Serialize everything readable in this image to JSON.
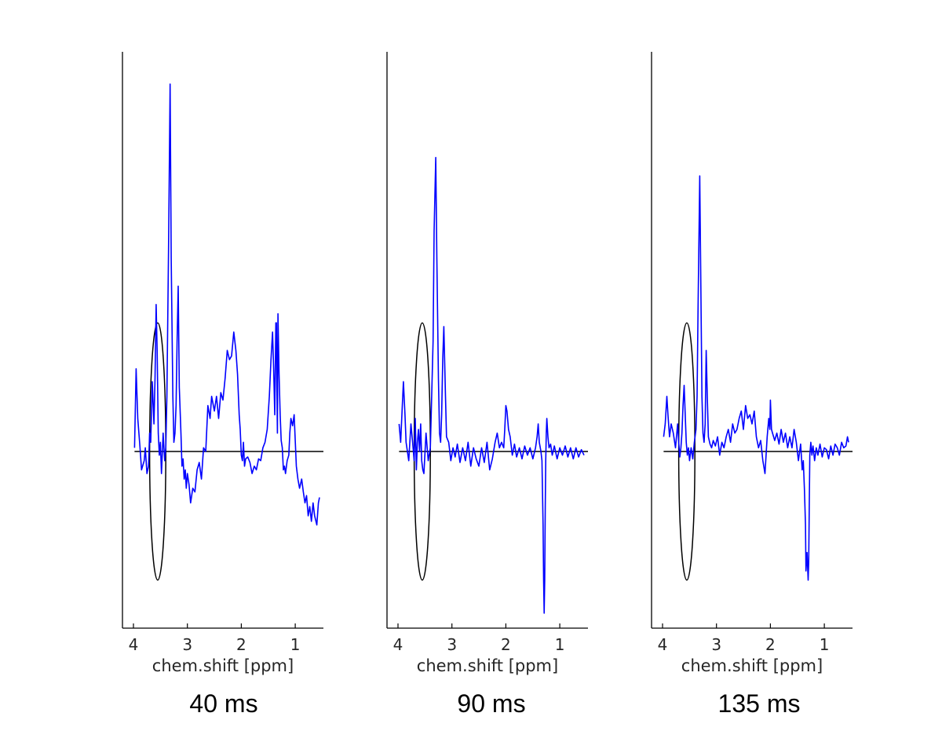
{
  "colors": {
    "spectrum": "#0000ff",
    "axis": "#000000",
    "baseline": "#000000",
    "ellipse": "#000000"
  },
  "chart_data": [
    {
      "type": "line",
      "caption": "40 ms",
      "xlabel": "chem.shift [ppm]",
      "xlim": [
        4.2,
        0.5
      ],
      "ylim": [
        -1.0,
        2.1
      ],
      "x_ticks": [
        {
          "value": 4,
          "label": "4"
        },
        {
          "value": 3,
          "label": "3"
        },
        {
          "value": 2,
          "label": "2"
        },
        {
          "value": 1,
          "label": "1"
        }
      ],
      "grid": false,
      "baseline": 0,
      "highlight_ellipse": {
        "center_ppm": 3.55,
        "center_y": 0,
        "half_width_ppm": 0.15,
        "half_height": 0.7
      },
      "x": [
        3.98,
        3.95,
        3.92,
        3.88,
        3.85,
        3.8,
        3.78,
        3.75,
        3.72,
        3.7,
        3.68,
        3.65,
        3.62,
        3.6,
        3.58,
        3.56,
        3.54,
        3.52,
        3.5,
        3.48,
        3.45,
        3.42,
        3.4,
        3.38,
        3.35,
        3.32,
        3.3,
        3.27,
        3.25,
        3.23,
        3.21,
        3.19,
        3.17,
        3.15,
        3.12,
        3.1,
        3.08,
        3.06,
        3.04,
        3.02,
        3.0,
        2.97,
        2.94,
        2.9,
        2.86,
        2.82,
        2.78,
        2.74,
        2.7,
        2.66,
        2.62,
        2.58,
        2.55,
        2.5,
        2.46,
        2.42,
        2.38,
        2.34,
        2.3,
        2.26,
        2.22,
        2.18,
        2.14,
        2.1,
        2.07,
        2.04,
        2.02,
        2.0,
        1.98,
        1.96,
        1.94,
        1.92,
        1.88,
        1.84,
        1.8,
        1.76,
        1.72,
        1.68,
        1.64,
        1.6,
        1.56,
        1.52,
        1.48,
        1.45,
        1.42,
        1.4,
        1.38,
        1.36,
        1.35,
        1.34,
        1.33,
        1.32,
        1.3,
        1.28,
        1.26,
        1.24,
        1.22,
        1.2,
        1.18,
        1.15,
        1.12,
        1.1,
        1.08,
        1.05,
        1.02,
        1.0,
        0.98,
        0.95,
        0.92,
        0.88,
        0.85,
        0.82,
        0.79,
        0.76,
        0.73,
        0.7,
        0.67,
        0.64,
        0.6,
        0.57,
        0.55
      ],
      "y": [
        0.02,
        0.45,
        0.18,
        0.03,
        -0.1,
        -0.05,
        0.02,
        -0.12,
        -0.08,
        0.1,
        0.05,
        0.38,
        0.15,
        0.4,
        0.8,
        0.55,
        0.1,
        -0.02,
        0.05,
        -0.12,
        0.1,
        -0.05,
        0.02,
        0.3,
        1.1,
        2.0,
        1.05,
        0.3,
        0.05,
        0.1,
        0.25,
        0.6,
        0.9,
        0.35,
        0.1,
        -0.08,
        -0.04,
        -0.15,
        -0.1,
        -0.2,
        -0.12,
        -0.18,
        -0.28,
        -0.2,
        -0.22,
        -0.1,
        -0.06,
        -0.15,
        0.02,
        0.0,
        0.25,
        0.18,
        0.3,
        0.22,
        0.3,
        0.18,
        0.32,
        0.28,
        0.4,
        0.55,
        0.5,
        0.52,
        0.65,
        0.55,
        0.42,
        0.2,
        0.12,
        -0.02,
        -0.05,
        0.05,
        -0.08,
        -0.04,
        -0.03,
        -0.06,
        -0.12,
        -0.08,
        -0.1,
        -0.04,
        -0.05,
        0.02,
        0.05,
        0.12,
        0.3,
        0.5,
        0.65,
        0.45,
        0.2,
        0.7,
        0.7,
        0.35,
        0.1,
        0.75,
        0.42,
        0.2,
        0.06,
        0.02,
        -0.1,
        -0.08,
        -0.12,
        -0.05,
        -0.02,
        0.1,
        0.18,
        0.14,
        0.2,
        0.06,
        -0.08,
        -0.15,
        -0.2,
        -0.15,
        -0.22,
        -0.28,
        -0.24,
        -0.35,
        -0.3,
        -0.38,
        -0.28,
        -0.35,
        -0.4,
        -0.28,
        -0.25
      ]
    },
    {
      "type": "line",
      "caption": "90 ms",
      "xlabel": "chem.shift [ppm]",
      "xlim": [
        4.2,
        0.5
      ],
      "ylim": [
        -1.0,
        2.1
      ],
      "x_ticks": [
        {
          "value": 4,
          "label": "4"
        },
        {
          "value": 3,
          "label": "3"
        },
        {
          "value": 2,
          "label": "2"
        },
        {
          "value": 1,
          "label": "1"
        }
      ],
      "grid": false,
      "baseline": 0,
      "highlight_ellipse": {
        "center_ppm": 3.55,
        "center_y": 0,
        "half_width_ppm": 0.15,
        "half_height": 0.7
      },
      "x": [
        3.98,
        3.95,
        3.92,
        3.9,
        3.87,
        3.85,
        3.8,
        3.76,
        3.72,
        3.7,
        3.68,
        3.66,
        3.64,
        3.62,
        3.6,
        3.58,
        3.56,
        3.54,
        3.52,
        3.48,
        3.44,
        3.4,
        3.38,
        3.35,
        3.33,
        3.3,
        3.28,
        3.25,
        3.23,
        3.21,
        3.19,
        3.17,
        3.15,
        3.12,
        3.1,
        3.06,
        3.02,
        2.98,
        2.94,
        2.9,
        2.85,
        2.8,
        2.75,
        2.7,
        2.65,
        2.6,
        2.55,
        2.5,
        2.45,
        2.4,
        2.35,
        2.3,
        2.25,
        2.2,
        2.16,
        2.12,
        2.08,
        2.04,
        2.02,
        2.0,
        1.98,
        1.95,
        1.92,
        1.88,
        1.84,
        1.8,
        1.75,
        1.7,
        1.65,
        1.6,
        1.55,
        1.5,
        1.45,
        1.42,
        1.4,
        1.38,
        1.35,
        1.33,
        1.31,
        1.3,
        1.29,
        1.28,
        1.27,
        1.26,
        1.25,
        1.24,
        1.22,
        1.2,
        1.17,
        1.14,
        1.1,
        1.05,
        1.0,
        0.95,
        0.9,
        0.85,
        0.8,
        0.75,
        0.7,
        0.65,
        0.6,
        0.55
      ],
      "y": [
        0.15,
        0.05,
        0.25,
        0.38,
        0.2,
        0.05,
        -0.05,
        0.15,
        0.02,
        -0.05,
        0.18,
        -0.1,
        0.05,
        0.12,
        0.0,
        0.15,
        -0.05,
        -0.1,
        -0.12,
        0.1,
        -0.05,
        0.02,
        0.25,
        0.6,
        1.2,
        1.6,
        1.05,
        0.4,
        0.1,
        0.05,
        0.2,
        0.5,
        0.68,
        0.3,
        0.08,
        0.05,
        -0.05,
        0.02,
        -0.03,
        0.04,
        -0.06,
        0.02,
        -0.05,
        0.05,
        -0.08,
        0.02,
        -0.04,
        -0.08,
        0.02,
        -0.06,
        0.05,
        -0.1,
        -0.04,
        0.05,
        0.1,
        0.02,
        0.05,
        0.02,
        0.12,
        0.25,
        0.22,
        0.12,
        0.08,
        -0.02,
        0.04,
        -0.03,
        0.02,
        -0.04,
        0.03,
        -0.02,
        0.02,
        -0.04,
        0.02,
        0.08,
        0.15,
        0.05,
        0.0,
        -0.05,
        -0.4,
        -0.7,
        -0.88,
        -0.7,
        -0.3,
        -0.05,
        0.1,
        0.18,
        0.08,
        0.02,
        0.04,
        -0.02,
        0.03,
        -0.04,
        0.02,
        -0.02,
        0.03,
        -0.03,
        0.02,
        -0.04,
        0.02,
        -0.03,
        0.01,
        -0.02
      ]
    },
    {
      "type": "line",
      "caption": "135 ms",
      "xlabel": "chem.shift [ppm]",
      "xlim": [
        4.2,
        0.5
      ],
      "ylim": [
        -1.0,
        2.1
      ],
      "x_ticks": [
        {
          "value": 4,
          "label": "4"
        },
        {
          "value": 3,
          "label": "3"
        },
        {
          "value": 2,
          "label": "2"
        },
        {
          "value": 1,
          "label": "1"
        }
      ],
      "grid": false,
      "baseline": 0,
      "highlight_ellipse": {
        "center_ppm": 3.55,
        "center_y": 0,
        "half_width_ppm": 0.15,
        "half_height": 0.7
      },
      "x": [
        3.98,
        3.95,
        3.92,
        3.9,
        3.87,
        3.84,
        3.8,
        3.76,
        3.72,
        3.7,
        3.68,
        3.66,
        3.64,
        3.62,
        3.6,
        3.58,
        3.56,
        3.54,
        3.52,
        3.5,
        3.47,
        3.44,
        3.41,
        3.38,
        3.36,
        3.34,
        3.31,
        3.29,
        3.27,
        3.25,
        3.23,
        3.21,
        3.19,
        3.17,
        3.15,
        3.12,
        3.09,
        3.06,
        3.02,
        2.98,
        2.94,
        2.9,
        2.86,
        2.82,
        2.78,
        2.74,
        2.7,
        2.66,
        2.62,
        2.58,
        2.54,
        2.5,
        2.46,
        2.42,
        2.38,
        2.34,
        2.3,
        2.26,
        2.22,
        2.18,
        2.14,
        2.1,
        2.06,
        2.03,
        2.01,
        2.0,
        1.98,
        1.96,
        1.92,
        1.88,
        1.84,
        1.8,
        1.76,
        1.72,
        1.68,
        1.64,
        1.6,
        1.56,
        1.52,
        1.48,
        1.44,
        1.41,
        1.39,
        1.37,
        1.35,
        1.34,
        1.32,
        1.3,
        1.29,
        1.28,
        1.27,
        1.25,
        1.23,
        1.21,
        1.18,
        1.15,
        1.12,
        1.08,
        1.04,
        1.0,
        0.96,
        0.92,
        0.88,
        0.84,
        0.8,
        0.76,
        0.72,
        0.68,
        0.64,
        0.6,
        0.57,
        0.55
      ],
      "y": [
        0.08,
        0.15,
        0.3,
        0.2,
        0.08,
        0.15,
        0.1,
        0.02,
        0.15,
        0.05,
        -0.03,
        0.02,
        0.1,
        0.25,
        0.36,
        0.2,
        0.05,
        -0.02,
        0.02,
        -0.05,
        0.02,
        -0.04,
        0.05,
        0.12,
        0.3,
        0.8,
        1.5,
        0.9,
        0.3,
        0.1,
        0.05,
        0.15,
        0.55,
        0.3,
        0.08,
        0.04,
        0.02,
        0.06,
        0.03,
        0.08,
        -0.02,
        0.05,
        0.02,
        0.08,
        0.12,
        0.05,
        0.15,
        0.1,
        0.12,
        0.18,
        0.22,
        0.12,
        0.25,
        0.18,
        0.2,
        0.15,
        0.22,
        0.08,
        0.02,
        0.06,
        -0.05,
        -0.12,
        0.08,
        0.18,
        0.12,
        0.28,
        0.12,
        0.1,
        0.06,
        0.1,
        0.04,
        0.12,
        0.05,
        0.1,
        0.02,
        0.08,
        0.02,
        0.12,
        0.05,
        -0.05,
        0.04,
        -0.1,
        -0.05,
        -0.2,
        -0.4,
        -0.65,
        -0.55,
        -0.7,
        -0.6,
        -0.3,
        -0.02,
        0.05,
        -0.02,
        0.03,
        -0.05,
        0.02,
        -0.02,
        0.04,
        -0.03,
        0.02,
        0.01,
        -0.04,
        0.03,
        -0.02,
        0.04,
        0.02,
        -0.02,
        0.05,
        0.02,
        0.03,
        0.08,
        0.05
      ]
    }
  ]
}
